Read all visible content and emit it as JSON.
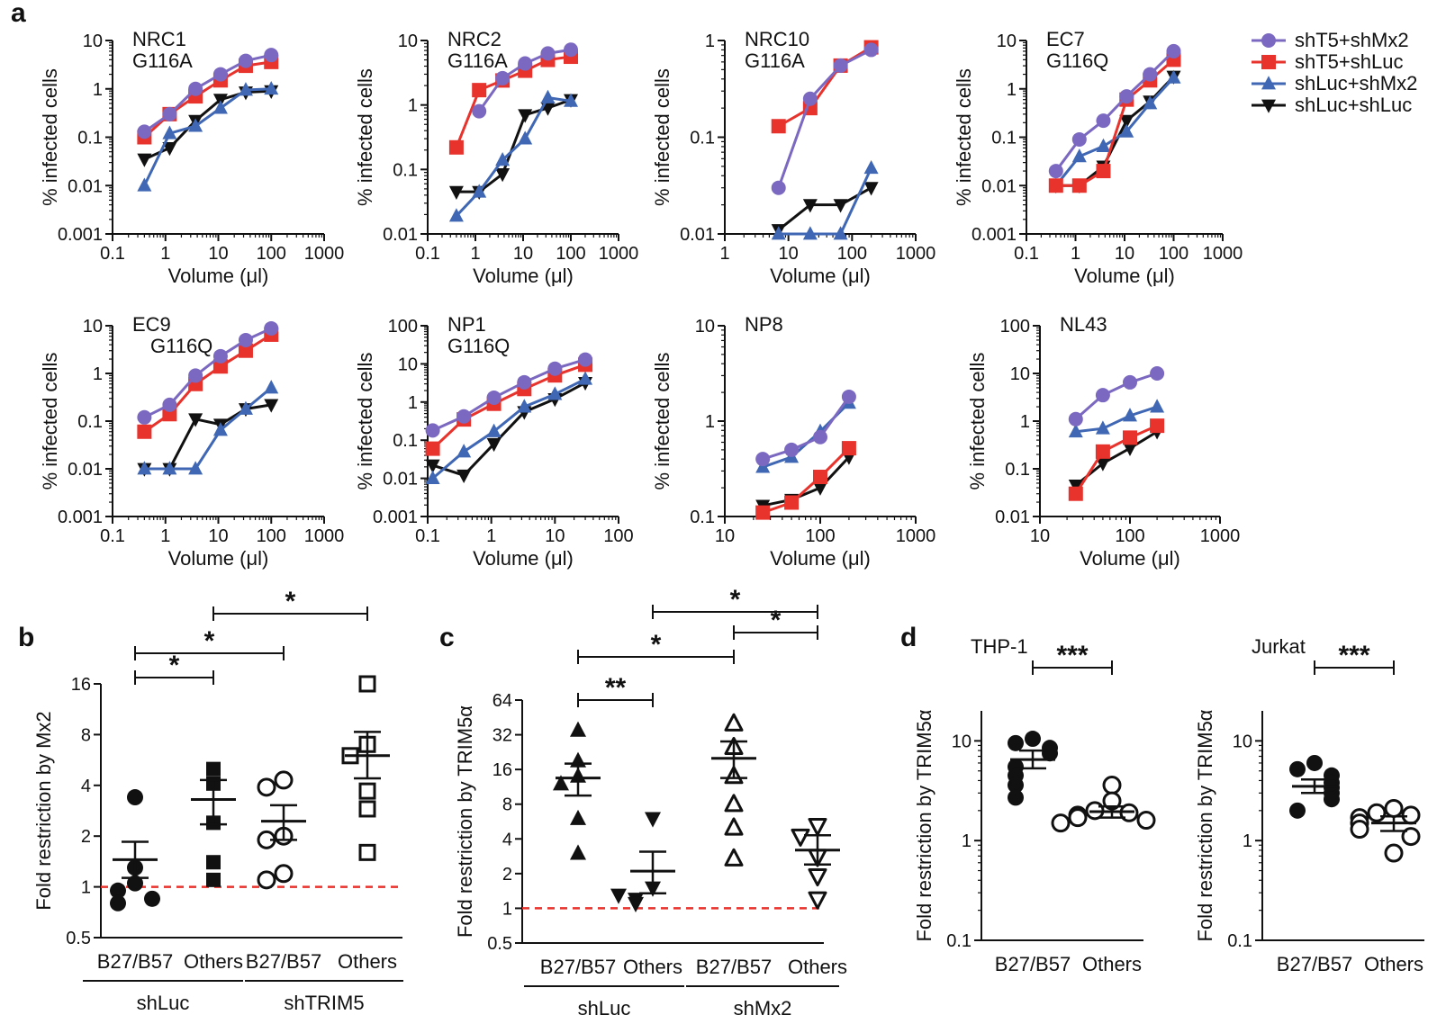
{
  "panels": {
    "a": "a",
    "b": "b",
    "c": "c",
    "d": "d"
  },
  "colors": {
    "shT5_shMx2": "#7b68c0",
    "shT5_shLuc": "#e8322c",
    "shLuc_shMx2": "#3f67b4",
    "shLuc_shLuc": "#111111",
    "ref_line": "#e8322c"
  },
  "legend": [
    {
      "label": "shT5+shMx2",
      "marker": "circle",
      "color": "#7b68c0"
    },
    {
      "label": "shT5+shLuc",
      "marker": "square",
      "color": "#e8322c"
    },
    {
      "label": "shLuc+shMx2",
      "marker": "triangle-up",
      "color": "#3f67b4"
    },
    {
      "label": "shLuc+shLuc",
      "marker": "triangle-down",
      "color": "#111111"
    }
  ],
  "chart_data": [
    {
      "type": "line",
      "panel": "a",
      "title": "NRC1",
      "subtitle": "G116A",
      "xlabel": "Volume (μl)",
      "ylabel": "% infected cells",
      "xscale": "log",
      "yscale": "log",
      "xlim": [
        0.1,
        1000
      ],
      "ylim": [
        0.001,
        10
      ],
      "xticks": [
        "0.1",
        "1",
        "10",
        "100",
        "1000"
      ],
      "yticks": [
        "0.001",
        "0.01",
        "0.1",
        "1",
        "10"
      ],
      "x": [
        0.4,
        1.2,
        3.7,
        11,
        33,
        100
      ],
      "series": [
        {
          "values": [
            0.13,
            0.3,
            1.0,
            2.0,
            3.8,
            5.0
          ]
        },
        {
          "values": [
            0.1,
            0.3,
            0.7,
            1.5,
            3.0,
            3.6
          ]
        },
        {
          "values": [
            0.01,
            0.12,
            0.17,
            0.4,
            0.95,
            1.0
          ]
        },
        {
          "values": [
            0.035,
            0.06,
            0.22,
            0.6,
            0.85,
            0.9
          ]
        }
      ]
    },
    {
      "type": "line",
      "panel": "a",
      "title": "NRC2",
      "subtitle": "G116A",
      "xlabel": "Volume (μl)",
      "ylabel": "% infected cells",
      "xscale": "log",
      "yscale": "log",
      "xlim": [
        0.1,
        1000
      ],
      "ylim": [
        0.01,
        10
      ],
      "xticks": [
        "0.1",
        "1",
        "10",
        "100",
        "1000"
      ],
      "yticks": [
        "0.01",
        "0.1",
        "1",
        "10"
      ],
      "x": [
        0.4,
        1.2,
        3.7,
        11,
        33,
        100
      ],
      "series": [
        {
          "values": [
            null,
            0.8,
            2.6,
            4.4,
            6.3,
            7.2
          ]
        },
        {
          "values": [
            0.22,
            1.7,
            2.4,
            3.4,
            5.0,
            5.6
          ]
        },
        {
          "values": [
            0.019,
            0.045,
            0.14,
            0.3,
            1.3,
            1.15
          ]
        },
        {
          "values": [
            0.045,
            0.045,
            0.085,
            0.7,
            0.9,
            1.2
          ]
        }
      ]
    },
    {
      "type": "line",
      "panel": "a",
      "title": "NRC10",
      "subtitle": "G116A",
      "xlabel": "Volume (μl)",
      "ylabel": "% infected cells",
      "xscale": "log",
      "yscale": "log",
      "xlim": [
        1,
        1000
      ],
      "ylim": [
        0.01,
        1
      ],
      "xticks": [
        "1",
        "10",
        "100",
        "1000"
      ],
      "yticks": [
        "0.01",
        "0.1",
        "1"
      ],
      "x": [
        7,
        22,
        66,
        200
      ],
      "series": [
        {
          "values": [
            0.03,
            0.25,
            0.55,
            0.8
          ]
        },
        {
          "values": [
            0.13,
            0.2,
            0.55,
            0.85
          ]
        },
        {
          "values": [
            0.01,
            0.01,
            0.01,
            0.048
          ]
        },
        {
          "values": [
            0.011,
            0.02,
            0.02,
            0.03
          ]
        }
      ]
    },
    {
      "type": "line",
      "panel": "a",
      "title": "EC7",
      "subtitle": "G116Q",
      "xlabel": "Volume (μl)",
      "ylabel": "% infected cells",
      "xscale": "log",
      "yscale": "log",
      "xlim": [
        0.1,
        1000
      ],
      "ylim": [
        0.001,
        10
      ],
      "xticks": [
        "0.1",
        "1",
        "10",
        "100",
        "1000"
      ],
      "yticks": [
        "0.001",
        "0.01",
        "0.1",
        "1",
        "10"
      ],
      "x": [
        0.4,
        1.2,
        3.7,
        11,
        33,
        100
      ],
      "series": [
        {
          "values": [
            0.02,
            0.09,
            0.22,
            0.7,
            2.0,
            6.0
          ]
        },
        {
          "values": [
            0.01,
            0.01,
            0.02,
            0.6,
            1.5,
            4.0
          ]
        },
        {
          "values": [
            0.01,
            0.04,
            0.065,
            0.13,
            0.5,
            1.7
          ]
        },
        {
          "values": [
            0.01,
            0.01,
            0.025,
            0.22,
            0.55,
            1.8
          ]
        }
      ]
    },
    {
      "type": "line",
      "panel": "a",
      "title": "EC9",
      "subtitle": "G116Q",
      "xlabel": "Volume (μl)",
      "ylabel": "% infected cells",
      "xscale": "log",
      "yscale": "log",
      "xlim": [
        0.1,
        1000
      ],
      "ylim": [
        0.001,
        10
      ],
      "xticks": [
        "0.1",
        "1",
        "10",
        "100",
        "1000"
      ],
      "yticks": [
        "0.001",
        "0.01",
        "0.1",
        "1",
        "10"
      ],
      "x": [
        0.4,
        1.2,
        3.7,
        11,
        33,
        100
      ],
      "series": [
        {
          "values": [
            0.12,
            0.22,
            0.9,
            2.3,
            5.0,
            8.8
          ]
        },
        {
          "values": [
            0.06,
            0.14,
            0.6,
            1.4,
            3.0,
            6.5
          ]
        },
        {
          "values": [
            0.01,
            0.01,
            0.01,
            0.065,
            0.18,
            0.5
          ]
        },
        {
          "values": [
            0.01,
            0.01,
            0.11,
            0.085,
            0.18,
            0.22
          ]
        }
      ]
    },
    {
      "type": "line",
      "panel": "a",
      "title": "NP1",
      "subtitle": "G116Q",
      "xlabel": "Volume (μl)",
      "ylabel": "% infected cells",
      "xscale": "log",
      "yscale": "log",
      "xlim": [
        0.1,
        100
      ],
      "ylim": [
        0.001,
        100
      ],
      "xticks": [
        "0.1",
        "1",
        "10",
        "100"
      ],
      "yticks": [
        "0.001",
        "0.01",
        "0.1",
        "1",
        "10",
        "100"
      ],
      "x": [
        0.12,
        0.37,
        1.1,
        3.3,
        10,
        30
      ],
      "series": [
        {
          "values": [
            0.18,
            0.42,
            1.3,
            3.3,
            7.5,
            13
          ]
        },
        {
          "values": [
            0.06,
            0.35,
            0.9,
            2.2,
            5.0,
            9.5
          ]
        },
        {
          "values": [
            0.01,
            0.05,
            0.17,
            0.75,
            1.6,
            4.0
          ]
        },
        {
          "values": [
            0.022,
            0.012,
            0.08,
            0.55,
            1.2,
            3.2
          ]
        }
      ]
    },
    {
      "type": "line",
      "panel": "a",
      "title": "NP8",
      "subtitle": "",
      "xlabel": "Volume (μl)",
      "ylabel": "% infected cells",
      "xscale": "log",
      "yscale": "log",
      "xlim": [
        10,
        1000
      ],
      "ylim": [
        0.1,
        10
      ],
      "xticks": [
        "10",
        "100",
        "1000"
      ],
      "yticks": [
        "0.1",
        "1",
        "10"
      ],
      "x": [
        25,
        50,
        100,
        200
      ],
      "series": [
        {
          "values": [
            0.4,
            0.5,
            0.68,
            1.8
          ]
        },
        {
          "values": [
            0.11,
            0.14,
            0.26,
            0.52
          ]
        },
        {
          "values": [
            0.33,
            0.42,
            0.78,
            1.55
          ]
        },
        {
          "values": [
            0.13,
            0.15,
            0.2,
            0.42
          ]
        }
      ]
    },
    {
      "type": "line",
      "panel": "a",
      "title": "NL43",
      "subtitle": "",
      "xlabel": "Volume (μl)",
      "ylabel": "% infected cells",
      "xscale": "log",
      "yscale": "log",
      "xlim": [
        10,
        1000
      ],
      "ylim": [
        0.01,
        100
      ],
      "xticks": [
        "10",
        "100",
        "1000"
      ],
      "yticks": [
        "0.01",
        "0.1",
        "1",
        "10",
        "100"
      ],
      "x": [
        25,
        50,
        100,
        200
      ],
      "series": [
        {
          "values": [
            1.1,
            3.5,
            6.5,
            10
          ]
        },
        {
          "values": [
            0.03,
            0.23,
            0.45,
            0.8
          ]
        },
        {
          "values": [
            0.6,
            0.7,
            1.3,
            2.0
          ]
        },
        {
          "values": [
            0.045,
            0.13,
            0.27,
            0.6
          ]
        }
      ]
    },
    {
      "type": "scatter",
      "panel": "b",
      "ylabel": "Fold restriction by Mx2",
      "yscale": "log2",
      "ylim": [
        0.5,
        16
      ],
      "yticks": [
        "0.5",
        "1",
        "2",
        "4",
        "8",
        "16"
      ],
      "categories": [
        "B27/B57",
        "Others",
        "B27/B57",
        "Others"
      ],
      "groups": [
        "shLuc",
        "shTRIM5"
      ],
      "markers": [
        "circle-filled",
        "square-filled",
        "circle-open",
        "square-open"
      ],
      "points": [
        [
          3.4,
          1.3,
          1.05,
          0.95,
          0.8,
          0.85
        ],
        [
          5.0,
          4.1,
          2.4,
          1.4,
          1.1
        ],
        [
          4.3,
          3.9,
          2.0,
          1.9,
          1.2,
          1.1
        ],
        [
          16,
          7.0,
          6.0,
          3.7,
          2.9,
          1.6
        ]
      ],
      "means": [
        1.45,
        3.3,
        2.45,
        6.0
      ],
      "sem": [
        [
          1.13,
          1.85
        ],
        [
          2.35,
          4.3
        ],
        [
          1.9,
          3.05
        ],
        [
          4.4,
          8.3
        ]
      ],
      "reference_line": 1,
      "significance": [
        {
          "from": 0,
          "to": 1,
          "label": "*"
        },
        {
          "from": 0,
          "to": 2,
          "label": "*"
        },
        {
          "from": 1,
          "to": 3,
          "label": "*"
        }
      ]
    },
    {
      "type": "scatter",
      "panel": "c",
      "ylabel": "Fold restriction by TRIM5α",
      "yscale": "log2",
      "ylim": [
        0.5,
        64
      ],
      "yticks": [
        "0.5",
        "1",
        "2",
        "4",
        "8",
        "16",
        "32",
        "64"
      ],
      "categories": [
        "B27/B57",
        "Others",
        "B27/B57",
        "Others"
      ],
      "groups": [
        "shLuc",
        "shMx2"
      ],
      "markers": [
        "triangle-up-filled",
        "triangle-down-filled",
        "triangle-up-open",
        "triangle-down-open"
      ],
      "points": [
        [
          35,
          19,
          14,
          12,
          6,
          3
        ],
        [
          6,
          1.5,
          1.2,
          1.1,
          1.3
        ],
        [
          40,
          25,
          14,
          8,
          5,
          2.7
        ],
        [
          5.2,
          4.2,
          2.8,
          1.9,
          1.2
        ]
      ],
      "means": [
        13.5,
        2.1,
        20,
        3.2
      ],
      "sem": [
        [
          9.5,
          18
        ],
        [
          1.35,
          3.1
        ],
        [
          13.5,
          28
        ],
        [
          2.4,
          4.3
        ]
      ],
      "reference_line": 1,
      "significance": [
        {
          "from": 0,
          "to": 1,
          "label": "**"
        },
        {
          "from": 0,
          "to": 2,
          "label": "*"
        },
        {
          "from": 1,
          "to": 3,
          "label": "*"
        },
        {
          "from": 2,
          "to": 3,
          "label": "*"
        }
      ]
    },
    {
      "type": "scatter",
      "panel": "d",
      "title": "THP-1",
      "ylabel": "Fold restriction by TRIM5α",
      "yscale": "log",
      "ylim": [
        0.1,
        20
      ],
      "yticks": [
        "0.1",
        "1",
        "10"
      ],
      "categories": [
        "B27/B57",
        "Others"
      ],
      "markers": [
        "circle-filled",
        "circle-open"
      ],
      "points": [
        [
          10.5,
          9.5,
          8.5,
          7.5,
          5.5,
          4.5,
          3.6,
          2.7
        ],
        [
          3.6,
          2.5,
          2.0,
          1.9,
          1.8,
          1.7,
          1.6,
          1.5
        ]
      ],
      "means": [
        6.5,
        1.95
      ],
      "sem": [
        [
          5.3,
          8.0
        ],
        [
          1.7,
          2.2
        ]
      ],
      "significance": [
        {
          "from": 0,
          "to": 1,
          "label": "***"
        }
      ]
    },
    {
      "type": "scatter",
      "panel": "d",
      "title": "Jurkat",
      "ylabel": "Fold restriction by TRIM5α",
      "yscale": "log",
      "ylim": [
        0.1,
        20
      ],
      "yticks": [
        "0.1",
        "1",
        "10"
      ],
      "categories": [
        "B27/B57",
        "Others"
      ],
      "markers": [
        "circle-filled",
        "circle-open"
      ],
      "points": [
        [
          6.0,
          5.2,
          4.5,
          3.8,
          3.4,
          3.0,
          2.6,
          2.0
        ],
        [
          2.1,
          1.9,
          1.8,
          1.7,
          1.5,
          1.3,
          1.1,
          0.75
        ]
      ],
      "means": [
        3.5,
        1.5
      ],
      "sem": [
        [
          3.0,
          4.1
        ],
        [
          1.25,
          1.75
        ]
      ],
      "significance": [
        {
          "from": 0,
          "to": 1,
          "label": "***"
        }
      ]
    }
  ]
}
